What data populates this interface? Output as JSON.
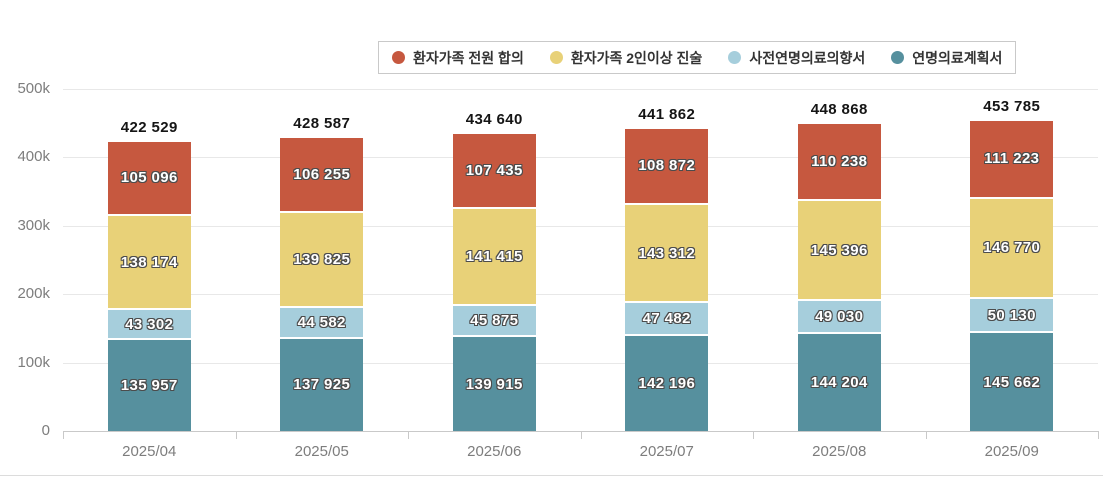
{
  "chart_data": {
    "type": "bar",
    "stacked": true,
    "title": "",
    "xlabel": "",
    "ylabel": "",
    "categories": [
      "2025/04",
      "2025/05",
      "2025/06",
      "2025/07",
      "2025/08",
      "2025/09"
    ],
    "series": [
      {
        "key": "family-full-consent",
        "name": "환자가족 전원 합의",
        "color": "#c6583f",
        "values": [
          105096,
          106255,
          107435,
          108872,
          110238,
          111223
        ]
      },
      {
        "key": "family-two-statement",
        "name": "환자가족 2인이상 진술",
        "color": "#e8d178",
        "values": [
          138174,
          139825,
          141415,
          143312,
          145396,
          146770
        ]
      },
      {
        "key": "advance-directive",
        "name": "사전연명의료의향서",
        "color": "#a6cedc",
        "values": [
          43302,
          44582,
          45875,
          47482,
          49030,
          50130
        ]
      },
      {
        "key": "care-plan",
        "name": "연명의료계획서",
        "color": "#56909e",
        "values": [
          135957,
          137925,
          139915,
          142196,
          144204,
          145662
        ]
      }
    ],
    "stack_order_note": "series listed top-to-bottom as stacked; legend shows same order left-to-right",
    "totals": [
      422529,
      428587,
      434640,
      441862,
      448868,
      453785
    ],
    "ylim": [
      0,
      500000
    ],
    "y_ticks": {
      "values": [
        0,
        100000,
        200000,
        300000,
        400000,
        500000
      ],
      "labels": [
        "0",
        "100k",
        "200k",
        "300k",
        "400k",
        "500k"
      ]
    },
    "legend_position": "top",
    "grid": true,
    "value_format": "thousands separated by space"
  },
  "colors": {
    "grid": "#e8e8e8",
    "axis": "#c9c9c9",
    "axis_text": "#7d7d7d",
    "total_text": "#151515",
    "segment_text": "#ffffff",
    "segment_text_outline": "#4c4c4c",
    "legend_border": "#c9c9c9",
    "legend_text": "#333333",
    "background": "#ffffff"
  }
}
